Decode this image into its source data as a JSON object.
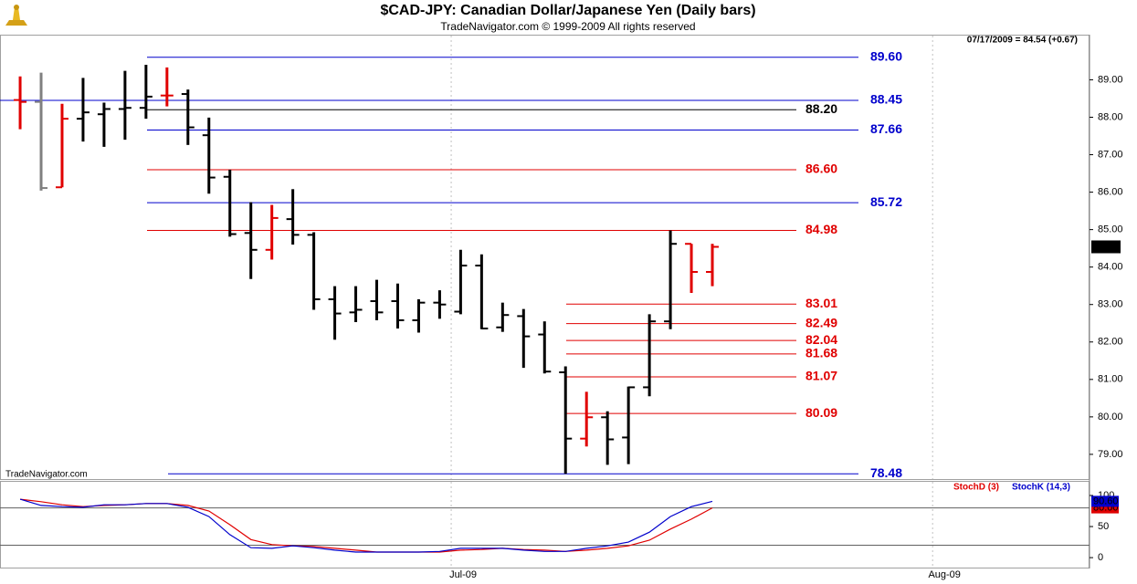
{
  "chart_data": [
    {
      "type": "ohlc",
      "title": "$CAD-JPY:  Canadian Dollar/Japanese Yen  (Daily bars)",
      "subtitle": "TradeNavigator.com © 1999-2009 All rights reserved",
      "annotation": "07/17/2009 = 84.54 (+0.67)",
      "watermark": "TradeNavigator.com",
      "x": [
        0,
        1,
        2,
        3,
        4,
        5,
        6,
        7,
        8,
        9,
        10,
        11,
        12,
        13,
        14,
        15,
        16,
        17,
        18,
        19,
        20,
        21,
        22,
        23,
        24,
        25,
        26,
        27,
        28,
        29,
        30,
        31,
        32,
        33
      ],
      "open": [
        88.46,
        88.41,
        86.13,
        87.96,
        88.08,
        88.22,
        88.25,
        88.58,
        88.62,
        87.52,
        86.41,
        84.91,
        84.46,
        85.28,
        84.86,
        83.14,
        82.79,
        83.09,
        83.09,
        82.58,
        83.05,
        82.81,
        84.04,
        82.39,
        82.69,
        82.2,
        81.19,
        79.42,
        79.99,
        79.45,
        80.79,
        82.55,
        84.62,
        83.87
      ],
      "high": [
        89.09,
        89.19,
        88.36,
        89.05,
        88.39,
        89.24,
        89.4,
        89.33,
        88.74,
        87.99,
        86.6,
        85.73,
        85.66,
        86.08,
        84.93,
        83.49,
        83.49,
        83.66,
        83.56,
        83.14,
        83.38,
        84.46,
        84.34,
        83.05,
        82.88,
        82.55,
        81.35,
        80.67,
        80.15,
        80.81,
        82.74,
        84.98,
        84.62,
        84.62
      ],
      "low": [
        87.68,
        86.04,
        86.13,
        87.35,
        87.21,
        87.4,
        87.96,
        88.29,
        87.26,
        85.96,
        84.81,
        83.68,
        84.2,
        84.6,
        82.86,
        82.06,
        82.53,
        82.58,
        82.36,
        82.25,
        82.62,
        82.74,
        82.34,
        82.27,
        81.31,
        81.16,
        78.48,
        79.21,
        78.72,
        78.74,
        80.55,
        82.34,
        83.31,
        83.49
      ],
      "close": [
        88.41,
        86.11,
        87.96,
        88.13,
        88.22,
        88.25,
        88.55,
        88.58,
        87.73,
        86.39,
        84.88,
        84.46,
        85.31,
        84.86,
        83.14,
        82.76,
        82.86,
        82.79,
        82.58,
        83.05,
        83.0,
        84.04,
        82.36,
        82.72,
        82.15,
        81.21,
        79.42,
        79.99,
        79.4,
        80.79,
        82.55,
        84.62,
        83.87,
        84.54
      ],
      "colors": [
        "#e00000",
        "#808080",
        "#e00000",
        "#000000",
        "#000000",
        "#000000",
        "#000000",
        "#e00000",
        "#000000",
        "#000000",
        "#000000",
        "#000000",
        "#e00000",
        "#000000",
        "#000000",
        "#000000",
        "#000000",
        "#000000",
        "#000000",
        "#000000",
        "#000000",
        "#000000",
        "#000000",
        "#000000",
        "#000000",
        "#000000",
        "#000000",
        "#e00000",
        "#000000",
        "#000000",
        "#000000",
        "#000000",
        "#e00000",
        "#e00000"
      ],
      "last_label": "84.54",
      "xlim": [
        -0.96,
        50.98
      ],
      "ylim": [
        78.34,
        90.18
      ],
      "yticks": [
        {
          "value": 79,
          "label": "79.00"
        },
        {
          "value": 80,
          "label": "80.00"
        },
        {
          "value": 81,
          "label": "81.00"
        },
        {
          "value": 82,
          "label": "82.00"
        },
        {
          "value": 83,
          "label": "83.00"
        },
        {
          "value": 84,
          "label": "84.00"
        },
        {
          "value": 85,
          "label": "85.00"
        },
        {
          "value": 86,
          "label": "86.00"
        },
        {
          "value": 87,
          "label": "87.00"
        },
        {
          "value": 88,
          "label": "88.00"
        },
        {
          "value": 89,
          "label": "89.00"
        }
      ],
      "levels": [
        {
          "value": 89.6,
          "label": "89.60",
          "color": "#0000cc"
        },
        {
          "value": 88.45,
          "label": "88.45",
          "color": "#0000cc"
        },
        {
          "value": 88.2,
          "label": "88.20",
          "color": "#000000"
        },
        {
          "value": 87.66,
          "label": "87.66",
          "color": "#0000cc"
        },
        {
          "value": 86.6,
          "label": "86.60",
          "color": "#e00000"
        },
        {
          "value": 85.72,
          "label": "85.72",
          "color": "#0000cc"
        },
        {
          "value": 84.98,
          "label": "84.98",
          "color": "#e00000"
        },
        {
          "value": 83.01,
          "label": "83.01",
          "color": "#e00000"
        },
        {
          "value": 82.49,
          "label": "82.49",
          "color": "#e00000"
        },
        {
          "value": 82.04,
          "label": "82.04",
          "color": "#e00000"
        },
        {
          "value": 81.68,
          "label": "81.68",
          "color": "#e00000"
        },
        {
          "value": 81.07,
          "label": "81.07",
          "color": "#e00000"
        },
        {
          "value": 80.09,
          "label": "80.09",
          "color": "#e00000"
        },
        {
          "value": 78.48,
          "label": "78.48",
          "color": "#0000cc"
        }
      ]
    },
    {
      "type": "line",
      "x": [
        0,
        1,
        2,
        3,
        4,
        5,
        6,
        7,
        8,
        9,
        10,
        11,
        12,
        13,
        14,
        15,
        16,
        17,
        18,
        19,
        20,
        21,
        22,
        23,
        24,
        25,
        26,
        27,
        28,
        29,
        30,
        31,
        32,
        33
      ],
      "series": [
        {
          "name": "StochD (3)",
          "color": "#e00000",
          "values": [
            94,
            90,
            85,
            82,
            84,
            85,
            87,
            87,
            84,
            75,
            53,
            29,
            21,
            19,
            18,
            15,
            12,
            9,
            9,
            9,
            9,
            12,
            13,
            15,
            13,
            12,
            10,
            12,
            15,
            19,
            28,
            46,
            62,
            80
          ],
          "value_labels": [
            null,
            null,
            null,
            null,
            null,
            null,
            null,
            null,
            null,
            null,
            null,
            null,
            null,
            null,
            null,
            null,
            null,
            null,
            null,
            null,
            null,
            null,
            null,
            null,
            null,
            null,
            null,
            null,
            null,
            null,
            null,
            null,
            null,
            "80.00"
          ]
        },
        {
          "name": "StochK (14,3)",
          "color": "#0000cc",
          "values": [
            94,
            84,
            82,
            81,
            85,
            85,
            87,
            87,
            81,
            66,
            37,
            16,
            15,
            19,
            16,
            12,
            9,
            9,
            9,
            9,
            10,
            15,
            15,
            15,
            12,
            10,
            10,
            15,
            19,
            25,
            41,
            66,
            82,
            90.6
          ],
          "value_labels": [
            null,
            null,
            null,
            null,
            null,
            null,
            null,
            null,
            null,
            null,
            null,
            null,
            null,
            null,
            null,
            null,
            null,
            null,
            null,
            null,
            null,
            null,
            null,
            null,
            null,
            null,
            null,
            null,
            null,
            null,
            null,
            null,
            null,
            "90.60"
          ]
        }
      ],
      "reference_lines": [
        20,
        80
      ],
      "xlim": [
        -0.96,
        50.98
      ],
      "ylim": [
        -16,
        122
      ],
      "yticks": [
        0,
        50,
        100
      ],
      "xticks": [
        {
          "value": 20.55,
          "label": "Jul-09"
        },
        {
          "value": 43.5,
          "label": "Aug-09"
        }
      ]
    }
  ]
}
